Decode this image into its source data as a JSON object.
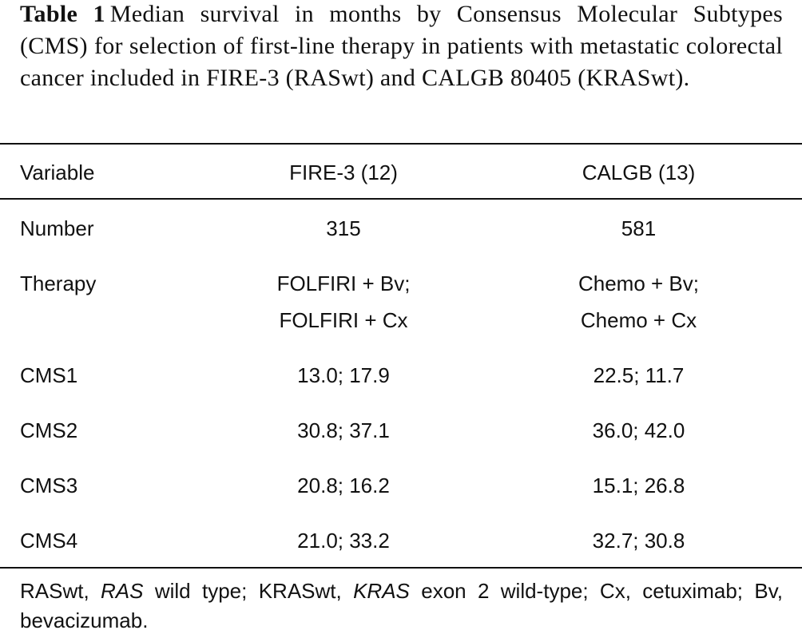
{
  "caption": {
    "label": "Table 1",
    "text": "Median survival in months by Consensus Molecular Subtypes (CMS) for selection of first-line therapy in patients with metastatic colorectal cancer included in FIRE-3 (RASwt) and CALGB 80405 (KRASwt)."
  },
  "table": {
    "header": [
      "Variable",
      "FIRE-3 (12)",
      "CALGB (13)"
    ],
    "rows": [
      [
        "Number",
        "315",
        "581"
      ],
      [
        "Therapy",
        [
          "FOLFIRI + Bv;",
          "FOLFIRI + Cx"
        ],
        [
          "Chemo + Bv;",
          "Chemo + Cx"
        ]
      ],
      [
        "CMS1",
        "13.0; 17.9",
        "22.5; 11.7"
      ],
      [
        "CMS2",
        "30.8; 37.1",
        "36.0; 42.0"
      ],
      [
        "CMS3",
        "20.8; 16.2",
        "15.1; 26.8"
      ],
      [
        "CMS4",
        "21.0; 33.2",
        "32.7; 30.8"
      ]
    ]
  },
  "footnote": [
    {
      "text": "RASwt, "
    },
    {
      "text": "RAS",
      "italic": true
    },
    {
      "text": " wild type; KRASwt, "
    },
    {
      "text": "KRAS",
      "italic": true
    },
    {
      "text": " exon 2 wild-type; Cx, cetuximab; Bv, bevacizumab."
    }
  ]
}
